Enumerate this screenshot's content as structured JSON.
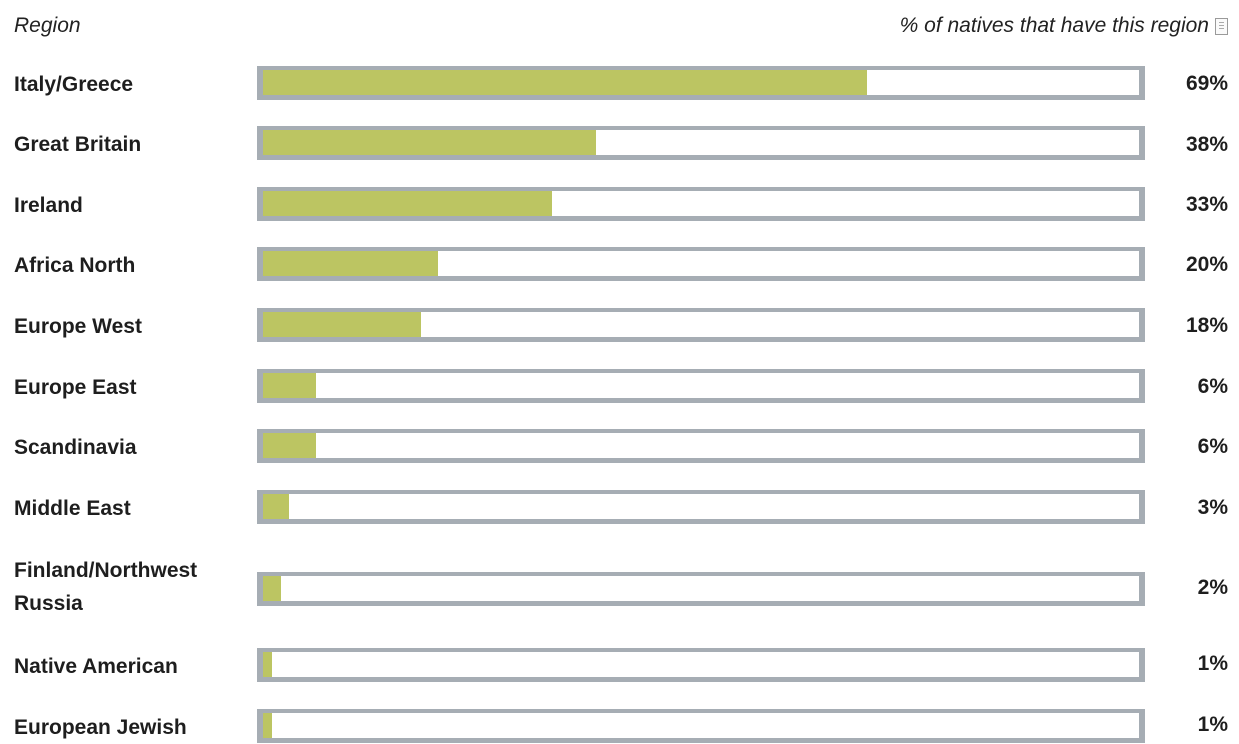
{
  "header": {
    "region_label": "Region",
    "pct_label": "% of natives that have this region"
  },
  "colors": {
    "track_border": "#a6adb4",
    "fill": "#bcc562",
    "background": "#ffffff"
  },
  "icons": {
    "info": "info-icon"
  },
  "chart_data": {
    "type": "bar",
    "orientation": "horizontal",
    "title": "",
    "xlabel": "% of natives that have this region",
    "ylabel": "Region",
    "xlim": [
      0,
      100
    ],
    "categories": [
      "Italy/Greece",
      "Great Britain",
      "Ireland",
      "Africa North",
      "Europe West",
      "Europe East",
      "Scandinavia",
      "Middle East",
      "Finland/Northwest Russia",
      "Native American",
      "European Jewish"
    ],
    "values": [
      69,
      38,
      33,
      20,
      18,
      6,
      6,
      3,
      2,
      1,
      1
    ],
    "value_labels": [
      "69%",
      "38%",
      "33%",
      "20%",
      "18%",
      "6%",
      "6%",
      "3%",
      "2%",
      "1%",
      "1%"
    ]
  }
}
